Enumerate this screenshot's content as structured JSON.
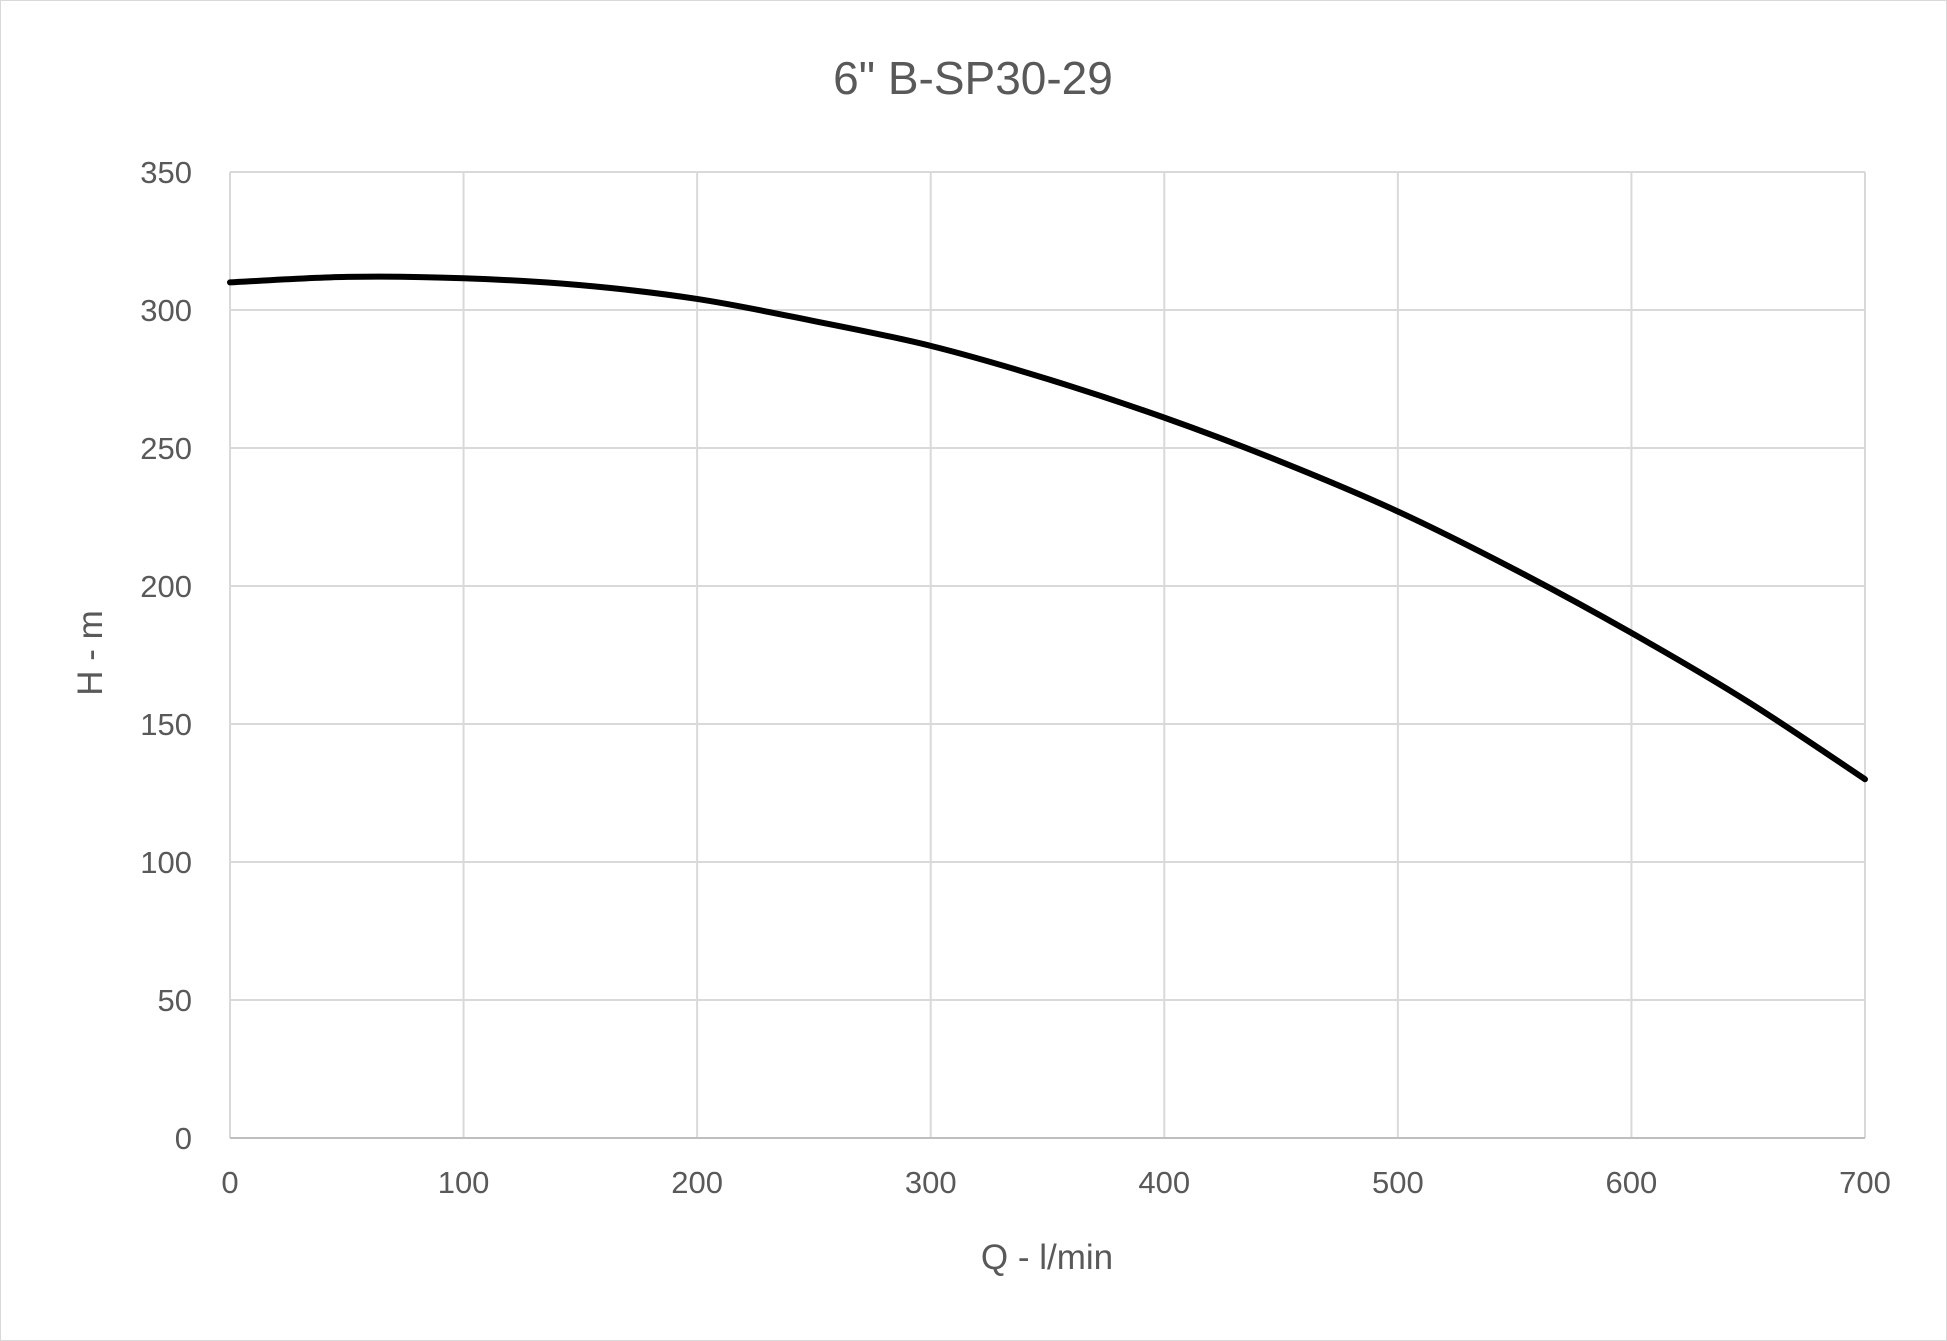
{
  "chart_data": {
    "type": "line",
    "title": "6\" B-SP30-29",
    "xlabel": "Q - l/min",
    "ylabel": "H - m",
    "xlim": [
      0,
      700
    ],
    "ylim": [
      0,
      350
    ],
    "x_ticks": [
      0,
      100,
      200,
      300,
      400,
      500,
      600,
      700
    ],
    "y_ticks": [
      0,
      50,
      100,
      150,
      200,
      250,
      300,
      350
    ],
    "grid": true,
    "legend": "none",
    "series": [
      {
        "color": "#000000",
        "x": [
          0,
          50,
          100,
          150,
          200,
          250,
          300,
          350,
          400,
          450,
          500,
          550,
          600,
          650,
          700
        ],
        "y": [
          310,
          312,
          311.5,
          309,
          304,
          296,
          287,
          275,
          261,
          245,
          227,
          206,
          183,
          158,
          130
        ]
      }
    ]
  }
}
